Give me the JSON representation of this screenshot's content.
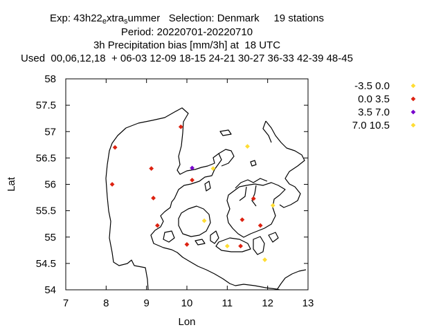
{
  "header": {
    "exp_prefix": "Exp: 43h22",
    "exp_sub1": "e",
    "exp_mid": "xtra",
    "exp_sub2": "s",
    "exp_suffix": "ummer",
    "selection": "Selection: Denmark",
    "stations": "19 stations",
    "period": "Period: 20220701-20220710",
    "subtitle": "3h Precipitation bias [mm/3h] at  18 UTC",
    "used": "Used  00,06,12,18  + 06-03 12-09 18-15 24-21 30-27 36-33 42-39 48-45"
  },
  "chart_data": {
    "type": "scatter",
    "xlabel": "Lon",
    "ylabel": "Lat",
    "xlim": [
      7,
      13
    ],
    "ylim": [
      54,
      58
    ],
    "xticks": [
      "7",
      "8",
      "9",
      "10",
      "11",
      "12",
      "13"
    ],
    "yticks": [
      "54",
      "54.5",
      "55",
      "55.5",
      "56",
      "56.5",
      "57",
      "57.5",
      "58"
    ],
    "legend_position": "right",
    "series": [
      {
        "name": "-3.5 0.0",
        "color": "#ffdd33",
        "points": [
          [
            11.5,
            56.72
          ],
          [
            10.65,
            56.3
          ],
          [
            10.43,
            55.31
          ],
          [
            12.13,
            55.6
          ],
          [
            11.0,
            54.83
          ],
          [
            11.93,
            54.57
          ]
        ]
      },
      {
        "name": "0.0 3.5",
        "color": "#dd2211",
        "points": [
          [
            8.22,
            56.7
          ],
          [
            9.85,
            57.09
          ],
          [
            9.12,
            56.3
          ],
          [
            8.15,
            56.0
          ],
          [
            10.13,
            56.08
          ],
          [
            9.17,
            55.74
          ],
          [
            9.27,
            55.22
          ],
          [
            10.0,
            54.86
          ],
          [
            11.37,
            55.33
          ],
          [
            11.33,
            54.83
          ],
          [
            11.82,
            55.22
          ],
          [
            11.65,
            55.73
          ]
        ]
      },
      {
        "name": "3.5 7.0",
        "color": "#7700cc",
        "points": [
          [
            10.13,
            56.31
          ]
        ]
      },
      {
        "name": "7.0 10.5",
        "color": "#ffdd33",
        "points": []
      }
    ]
  }
}
